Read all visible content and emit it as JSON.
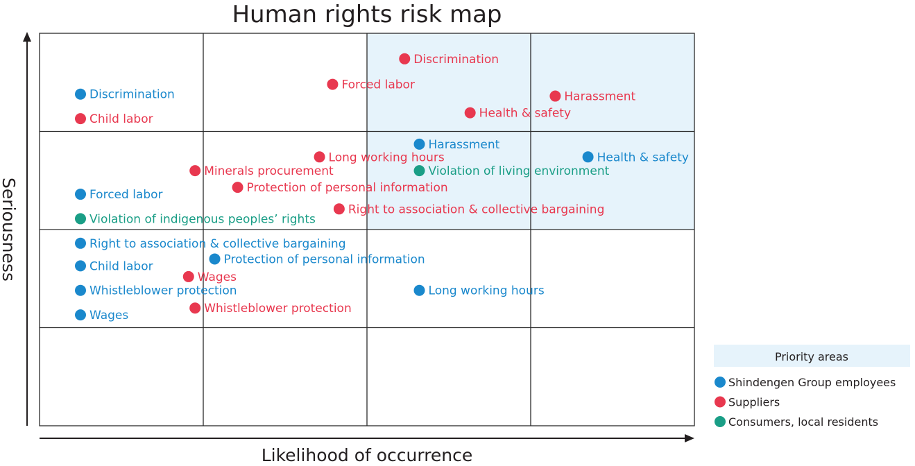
{
  "colors": {
    "employees": "#1a88cc",
    "suppliers": "#e8384f",
    "consumers": "#1a9e86",
    "priority_fill": "#e6f3fb",
    "grid": "#2b2b2b",
    "text_dark": "#231f20"
  },
  "chart_data": {
    "type": "scatter",
    "title": "Human rights risk map",
    "xlabel": "Likelihood of occurrence",
    "ylabel": "Seriousness",
    "xlim": [
      0,
      4
    ],
    "ylim": [
      0,
      4
    ],
    "grid": true,
    "priority_area": {
      "x": [
        2,
        4
      ],
      "y": [
        2,
        4
      ]
    },
    "legend": {
      "title": "Priority areas",
      "placement": "bottom-right",
      "entries": [
        {
          "key": "employees",
          "label": "Shindengen Group employees"
        },
        {
          "key": "suppliers",
          "label": "Suppliers"
        },
        {
          "key": "consumers",
          "label": "Consumers, local residents"
        }
      ]
    },
    "series": [
      {
        "key": "employees",
        "name": "Shindengen Group employees",
        "points": [
          {
            "label": "Discrimination",
            "x": 0.25,
            "y": 3.38
          },
          {
            "label": "Forced labor",
            "x": 0.25,
            "y": 2.36
          },
          {
            "label": "Right to association & collective bargaining",
            "x": 0.25,
            "y": 1.86
          },
          {
            "label": "Child labor",
            "x": 0.25,
            "y": 1.63
          },
          {
            "label": "Whistleblower protection",
            "x": 0.25,
            "y": 1.38
          },
          {
            "label": "Wages",
            "x": 0.25,
            "y": 1.13
          },
          {
            "label": "Protection of personal information",
            "x": 1.07,
            "y": 1.7
          },
          {
            "label": "Long working hours",
            "x": 2.32,
            "y": 1.38
          },
          {
            "label": "Harassment",
            "x": 2.32,
            "y": 2.87
          },
          {
            "label": "Health & safety",
            "x": 3.35,
            "y": 2.74
          }
        ]
      },
      {
        "key": "suppliers",
        "name": "Suppliers",
        "points": [
          {
            "label": "Child labor",
            "x": 0.25,
            "y": 3.13
          },
          {
            "label": "Discrimination",
            "x": 2.23,
            "y": 3.74
          },
          {
            "label": "Forced labor",
            "x": 1.79,
            "y": 3.48
          },
          {
            "label": "Harassment",
            "x": 3.15,
            "y": 3.36
          },
          {
            "label": "Health & safety",
            "x": 2.63,
            "y": 3.19
          },
          {
            "label": "Long working hours",
            "x": 1.71,
            "y": 2.74
          },
          {
            "label": "Minerals procurement",
            "x": 0.95,
            "y": 2.6
          },
          {
            "label": "Protection of personal information",
            "x": 1.21,
            "y": 2.43
          },
          {
            "label": "Right to association & collective bargaining",
            "x": 1.83,
            "y": 2.21
          },
          {
            "label": "Wages",
            "x": 0.91,
            "y": 1.52
          },
          {
            "label": "Whistleblower protection",
            "x": 0.95,
            "y": 1.2
          }
        ]
      },
      {
        "key": "consumers",
        "name": "Consumers, local residents",
        "points": [
          {
            "label": "Violation of living environment",
            "x": 2.32,
            "y": 2.6
          },
          {
            "label": "Violation of indigenous peoples’ rights",
            "x": 0.25,
            "y": 2.11
          }
        ]
      }
    ]
  }
}
